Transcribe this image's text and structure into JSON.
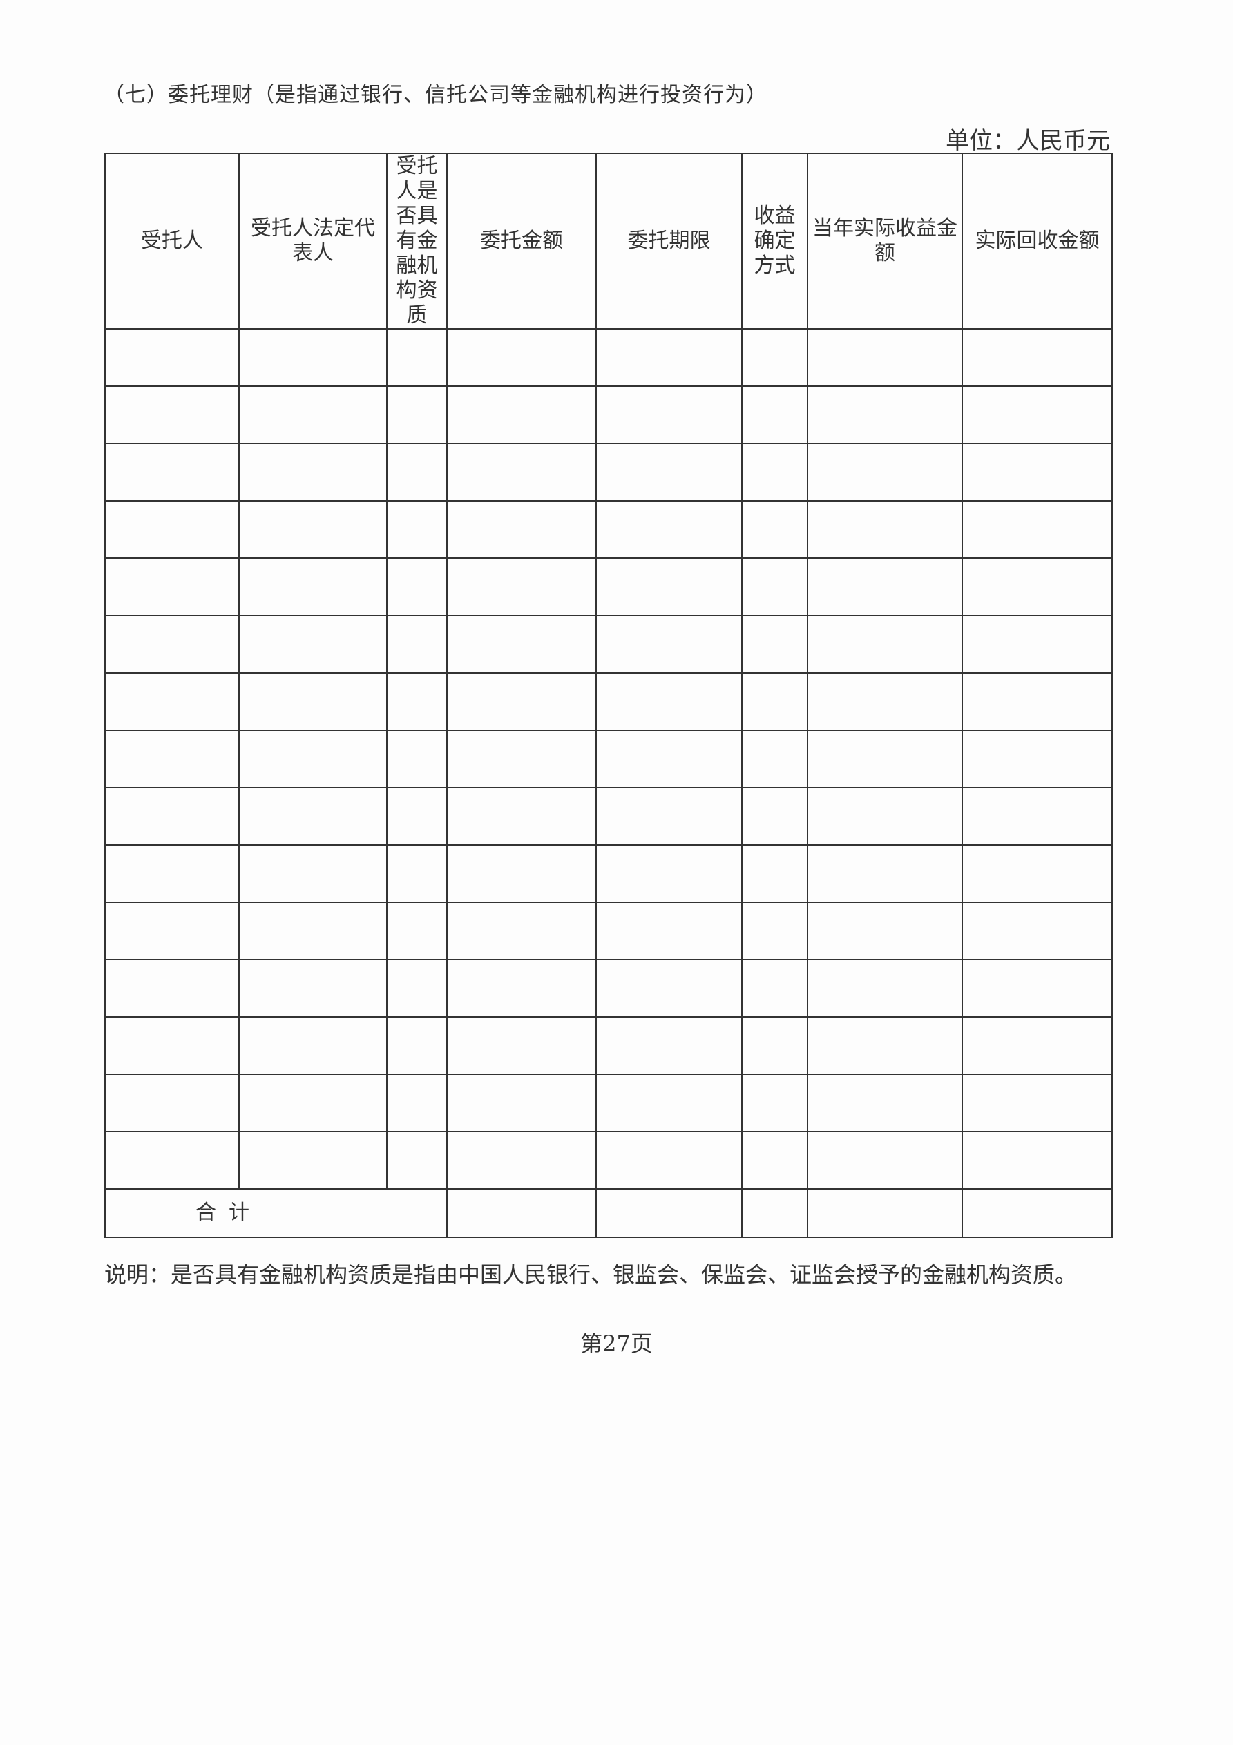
{
  "title": "（七）委托理财（是指通过银行、信托公司等金融机构进行投资行为）",
  "unit": "单位：人民币元",
  "table": {
    "headers": [
      "受托人",
      "受托人法定代表人",
      "受托人是否具有金融机构资质",
      "委托金额",
      "委托期限",
      "收益确定方式",
      "当年实际收益金额",
      "实际回收金额"
    ],
    "total_label": "合计"
  },
  "note": "说明：是否具有金融机构资质是指由中国人民银行、银监会、保监会、证监会授予的金融机构资质。",
  "page_number": "第27页"
}
